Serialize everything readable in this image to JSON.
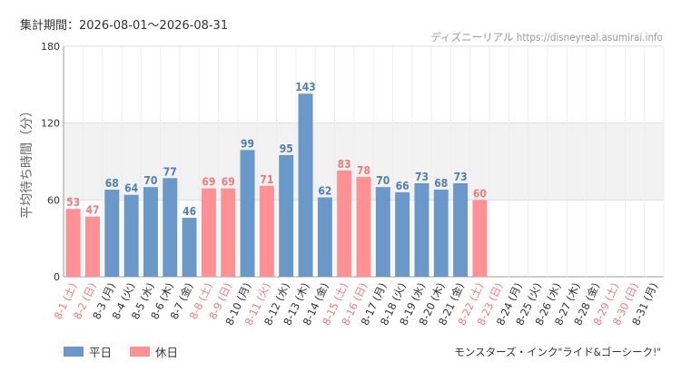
{
  "header": {
    "period": "集計期間：2026-08-01〜2026-08-31",
    "site": "ディズニーリアル https://disneyreal.asumirai.info"
  },
  "footer": {
    "attraction": "モンスターズ・インク\"ライド&ゴーシーク!\""
  },
  "legend": {
    "weekday": "平日",
    "holiday": "休日"
  },
  "colors": {
    "weekday": "#6a98c8",
    "holiday": "#ff9093",
    "weekday_text": "#4f7fb4",
    "holiday_text": "#f07a7d",
    "band": "#f2f2f2",
    "grid": "#dddddd"
  },
  "chart_data": {
    "type": "bar",
    "ylabel": "平均待ち時間（分）",
    "ylim": [
      0,
      180
    ],
    "yticks": [
      0,
      60,
      120,
      180
    ],
    "band": [
      60,
      120
    ],
    "categories": [
      "8-1 (土)",
      "8-2 (日)",
      "8-3 (月)",
      "8-4 (火)",
      "8-5 (水)",
      "8-6 (木)",
      "8-7 (金)",
      "8-8 (土)",
      "8-9 (日)",
      "8-10 (月)",
      "8-11 (火)",
      "8-12 (水)",
      "8-13 (木)",
      "8-14 (金)",
      "8-15 (土)",
      "8-16 (日)",
      "8-17 (月)",
      "8-18 (火)",
      "8-19 (水)",
      "8-20 (木)",
      "8-21 (金)",
      "8-22 (土)",
      "8-23 (日)",
      "8-24 (月)",
      "8-25 (火)",
      "8-26 (水)",
      "8-27 (木)",
      "8-28 (金)",
      "8-29 (土)",
      "8-30 (日)",
      "8-31 (月)"
    ],
    "day_type": [
      "holiday",
      "holiday",
      "weekday",
      "weekday",
      "weekday",
      "weekday",
      "weekday",
      "holiday",
      "holiday",
      "weekday",
      "holiday",
      "weekday",
      "weekday",
      "weekday",
      "holiday",
      "holiday",
      "weekday",
      "weekday",
      "weekday",
      "weekday",
      "weekday",
      "holiday",
      "holiday",
      "weekday",
      "weekday",
      "weekday",
      "weekday",
      "weekday",
      "holiday",
      "holiday",
      "weekday"
    ],
    "values": [
      53,
      47,
      68,
      64,
      70,
      77,
      46,
      69,
      69,
      99,
      71,
      95,
      143,
      62,
      83,
      78,
      70,
      66,
      73,
      68,
      73,
      60,
      null,
      null,
      null,
      null,
      null,
      null,
      null,
      null,
      null
    ],
    "series": [
      {
        "name": "平日",
        "type": "weekday"
      },
      {
        "name": "休日",
        "type": "holiday"
      }
    ]
  }
}
